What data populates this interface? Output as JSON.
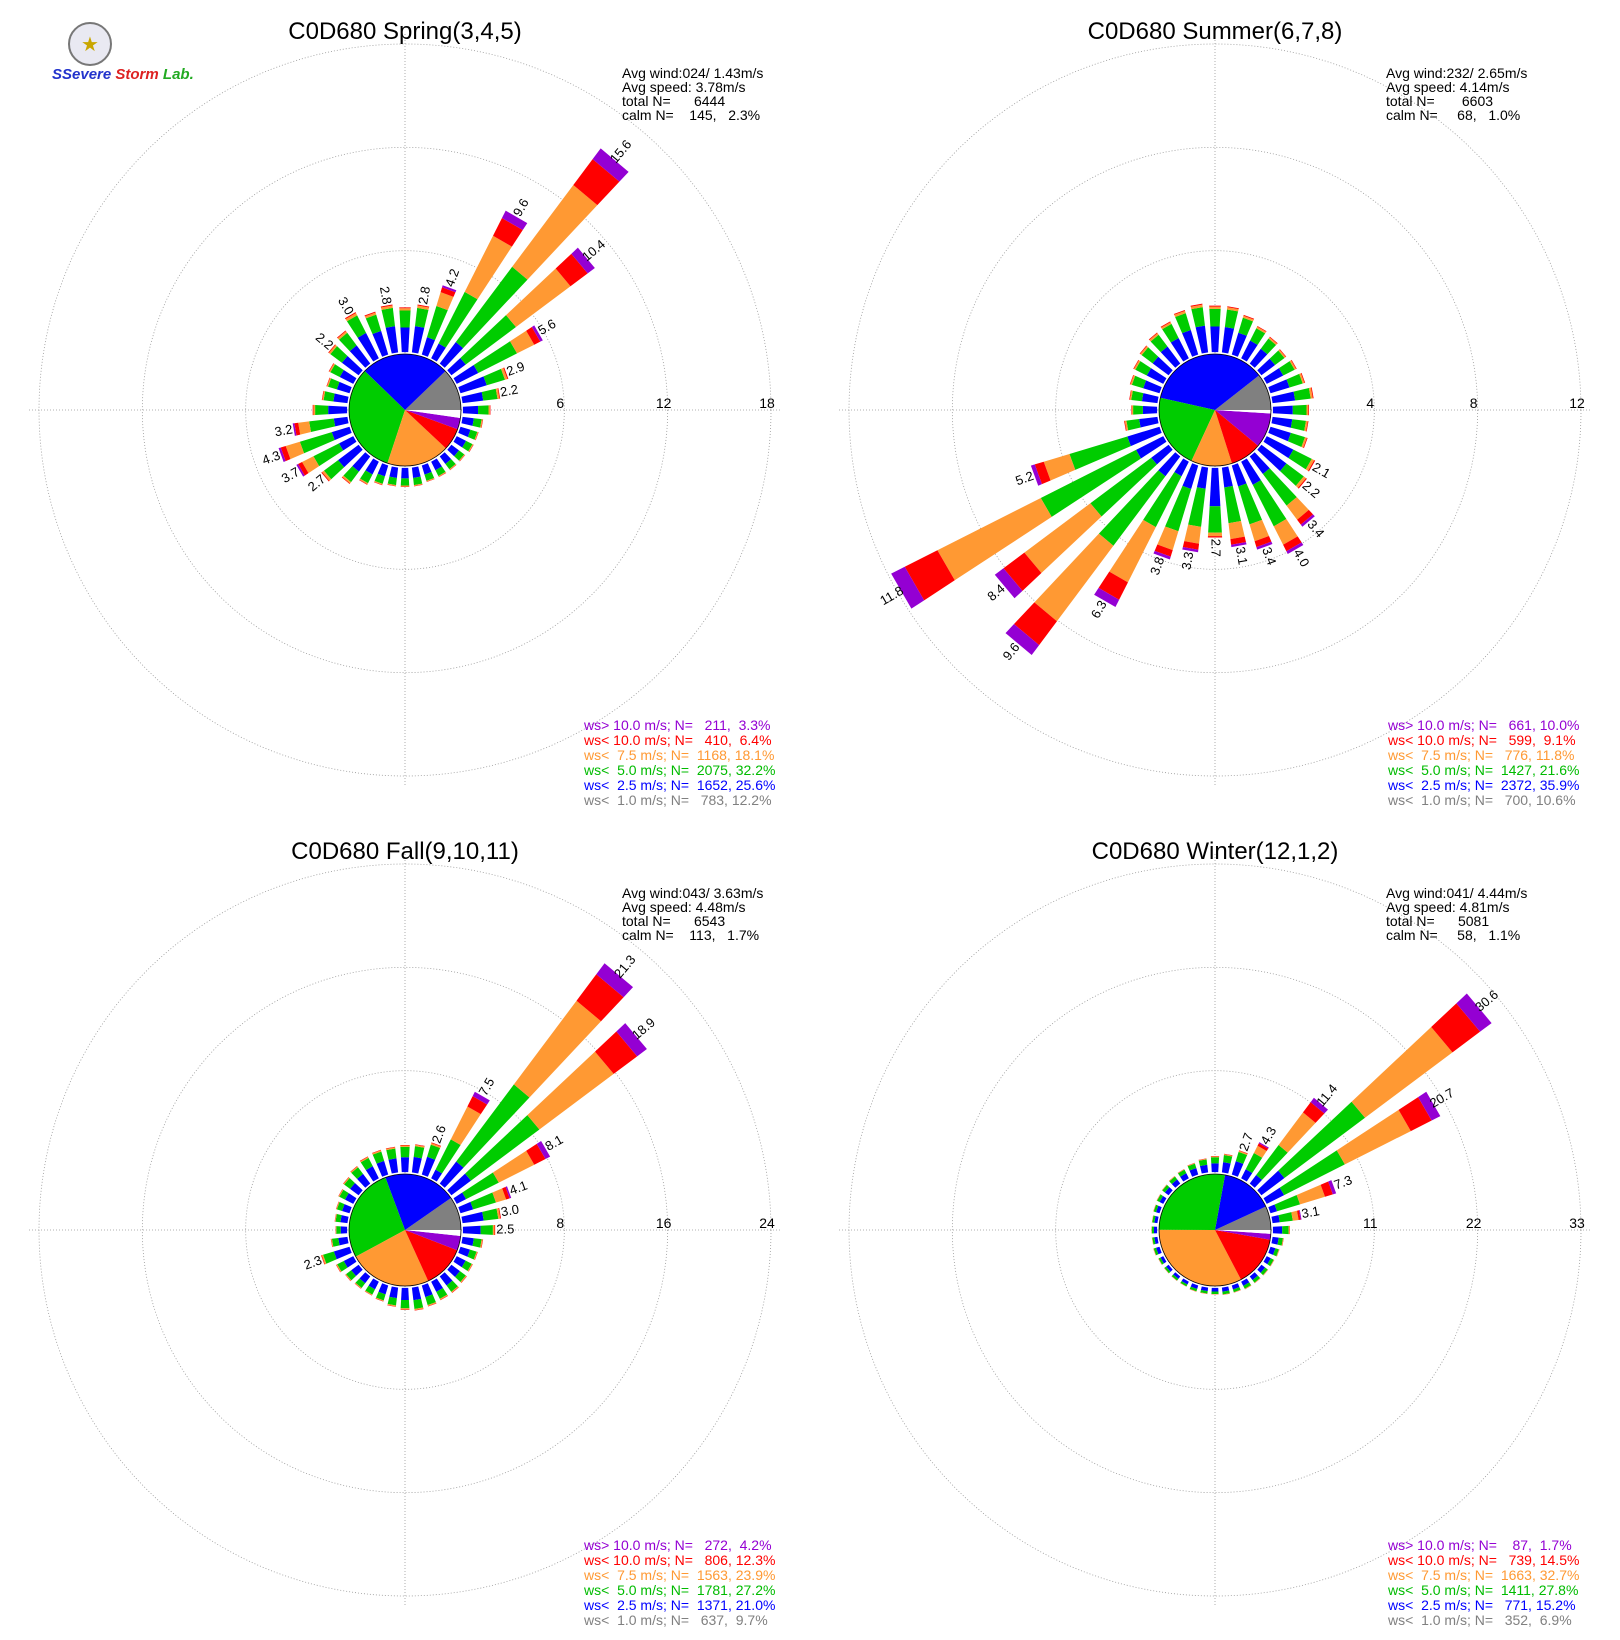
{
  "logo": {
    "word_a": "SSevere",
    "word_b": "Storm",
    "word_c": "Lab."
  },
  "colors": {
    "gt10": "#9400d3",
    "lt10": "#ff0000",
    "lt7_5": "#ff9933",
    "lt5": "#00cc00",
    "lt2_5": "#0000ff",
    "lt1": "#808080",
    "calm": "#ffffff",
    "grid": "#999999"
  },
  "chart_data": [
    {
      "type": "wind-rose",
      "title": "C0D680 Spring(3,4,5)",
      "stats": {
        "avg_wind": "Avg wind:024/ 1.43m/s",
        "avg_speed": "Avg speed: 3.78m/s",
        "total_n": "total N=      6444",
        "calm_n": "calm N=    145,   2.3%"
      },
      "rings": [
        6,
        12,
        18
      ],
      "rings_labels": [
        "6",
        "12",
        "18"
      ],
      "pie": [
        12.2,
        25.6,
        32.2,
        18.1,
        6.4,
        3.3,
        2.3
      ],
      "spokes": [
        {
          "dir": 10,
          "total": 2.8,
          "label": "2.8"
        },
        {
          "dir": 20,
          "total": 4.2,
          "label": "4.2"
        },
        {
          "dir": 30,
          "total": 9.6,
          "label": "9.6"
        },
        {
          "dir": 40,
          "total": 15.6,
          "label": "15.6"
        },
        {
          "dir": 50,
          "total": 10.4,
          "label": "10.4"
        },
        {
          "dir": 60,
          "total": 5.6,
          "label": "5.6"
        },
        {
          "dir": 70,
          "total": 2.9,
          "label": "2.9"
        },
        {
          "dir": 80,
          "total": 2.2,
          "label": "2.2"
        },
        {
          "dir": 90,
          "total": 1.6
        },
        {
          "dir": 100,
          "total": 1.2
        },
        {
          "dir": 110,
          "total": 1.1
        },
        {
          "dir": 120,
          "total": 1.1
        },
        {
          "dir": 130,
          "total": 1.0
        },
        {
          "dir": 140,
          "total": 1.0
        },
        {
          "dir": 150,
          "total": 1.0
        },
        {
          "dir": 160,
          "total": 1.0
        },
        {
          "dir": 170,
          "total": 1.1
        },
        {
          "dir": 180,
          "total": 1.1
        },
        {
          "dir": 190,
          "total": 1.1
        },
        {
          "dir": 200,
          "total": 1.2
        },
        {
          "dir": 210,
          "total": 1.5
        },
        {
          "dir": 220,
          "total": 2.0
        },
        {
          "dir": 230,
          "total": 2.7,
          "label": "2.7"
        },
        {
          "dir": 240,
          "total": 3.7,
          "label": "3.7"
        },
        {
          "dir": 250,
          "total": 4.3,
          "label": "4.3"
        },
        {
          "dir": 260,
          "total": 3.2,
          "label": "3.2"
        },
        {
          "dir": 270,
          "total": 2.0
        },
        {
          "dir": 280,
          "total": 1.5
        },
        {
          "dir": 290,
          "total": 1.4
        },
        {
          "dir": 300,
          "total": 1.6
        },
        {
          "dir": 310,
          "total": 2.2,
          "label": "2.2"
        },
        {
          "dir": 320,
          "total": 2.4
        },
        {
          "dir": 330,
          "total": 3.0,
          "label": "3.0"
        },
        {
          "dir": 340,
          "total": 2.6
        },
        {
          "dir": 350,
          "total": 2.8,
          "label": "2.8"
        },
        {
          "dir": 360,
          "total": 2.6
        }
      ],
      "legend": [
        "ws> 10.0 m/s; N=   211,  3.3%",
        "ws< 10.0 m/s; N=   410,  6.4%",
        "ws<  7.5 m/s; N=  1168, 18.1%",
        "ws<  5.0 m/s; N=  2075, 32.2%",
        "ws<  2.5 m/s; N=  1652, 25.6%",
        "ws<  1.0 m/s; N=   783, 12.2%"
      ]
    },
    {
      "type": "wind-rose",
      "title": "C0D680 Summer(6,7,8)",
      "stats": {
        "avg_wind": "Avg wind:232/ 2.65m/s",
        "avg_speed": "Avg speed: 4.14m/s",
        "total_n": "total N=       6603",
        "calm_n": "calm N=     68,   1.0%"
      },
      "rings": [
        4,
        8,
        12
      ],
      "rings_labels": [
        "4",
        "8",
        "12"
      ],
      "pie": [
        10.6,
        35.9,
        21.6,
        11.8,
        9.1,
        10.0,
        1.0
      ],
      "spokes": [
        {
          "dir": 10,
          "total": 1.8
        },
        {
          "dir": 20,
          "total": 1.6
        },
        {
          "dir": 30,
          "total": 1.4
        },
        {
          "dir": 40,
          "total": 1.3
        },
        {
          "dir": 50,
          "total": 1.2
        },
        {
          "dir": 60,
          "total": 1.3
        },
        {
          "dir": 70,
          "total": 1.4
        },
        {
          "dir": 80,
          "total": 1.6
        },
        {
          "dir": 90,
          "total": 1.4
        },
        {
          "dir": 100,
          "total": 1.4
        },
        {
          "dir": 110,
          "total": 1.5
        },
        {
          "dir": 120,
          "total": 2.1,
          "label": "2.1"
        },
        {
          "dir": 130,
          "total": 2.2,
          "label": "2.2"
        },
        {
          "dir": 140,
          "total": 3.4,
          "label": "3.4"
        },
        {
          "dir": 150,
          "total": 4.0,
          "label": "4.0"
        },
        {
          "dir": 160,
          "total": 3.4,
          "label": "3.4"
        },
        {
          "dir": 170,
          "total": 3.1,
          "label": "3.1"
        },
        {
          "dir": 180,
          "total": 2.7,
          "label": "2.7"
        },
        {
          "dir": 190,
          "total": 3.3,
          "label": "3.3"
        },
        {
          "dir": 200,
          "total": 3.8,
          "label": "3.8"
        },
        {
          "dir": 210,
          "total": 6.3,
          "label": "6.3"
        },
        {
          "dir": 220,
          "total": 9.6,
          "label": "9.6"
        },
        {
          "dir": 230,
          "total": 8.4,
          "label": "8.4"
        },
        {
          "dir": 240,
          "total": 11.8,
          "label": "11.8"
        },
        {
          "dir": 250,
          "total": 5.2,
          "label": "5.2"
        },
        {
          "dir": 260,
          "total": 1.3
        },
        {
          "dir": 270,
          "total": 1.0
        },
        {
          "dir": 280,
          "total": 1.1
        },
        {
          "dir": 290,
          "total": 1.2
        },
        {
          "dir": 300,
          "total": 1.3
        },
        {
          "dir": 310,
          "total": 1.4
        },
        {
          "dir": 320,
          "total": 1.5
        },
        {
          "dir": 330,
          "total": 1.6
        },
        {
          "dir": 340,
          "total": 1.8
        },
        {
          "dir": 350,
          "total": 1.9
        },
        {
          "dir": 360,
          "total": 1.8
        }
      ],
      "legend": [
        "ws> 10.0 m/s; N=   661, 10.0%",
        "ws< 10.0 m/s; N=   599,  9.1%",
        "ws<  7.5 m/s; N=   776, 11.8%",
        "ws<  5.0 m/s; N=  1427, 21.6%",
        "ws<  2.5 m/s; N=  2372, 35.9%",
        "ws<  1.0 m/s; N=   700, 10.6%"
      ]
    },
    {
      "type": "wind-rose",
      "title": "C0D680 Fall(9,10,11)",
      "stats": {
        "avg_wind": "Avg wind:043/ 3.63m/s",
        "avg_speed": "Avg speed: 4.48m/s",
        "total_n": "total N=      6543",
        "calm_n": "calm N=    113,   1.7%"
      },
      "rings": [
        8,
        16,
        24
      ],
      "rings_labels": [
        "8",
        "16",
        "24"
      ],
      "pie": [
        9.7,
        21.0,
        27.2,
        23.9,
        12.3,
        4.2,
        1.7
      ],
      "spokes": [
        {
          "dir": 10,
          "total": 2.2
        },
        {
          "dir": 20,
          "total": 2.6,
          "label": "2.6"
        },
        {
          "dir": 30,
          "total": 7.5,
          "label": "7.5"
        },
        {
          "dir": 40,
          "total": 21.3,
          "label": "21.3"
        },
        {
          "dir": 50,
          "total": 18.9,
          "label": "18.9"
        },
        {
          "dir": 60,
          "total": 8.1,
          "label": "8.1"
        },
        {
          "dir": 70,
          "total": 4.1,
          "label": "4.1"
        },
        {
          "dir": 80,
          "total": 3.0,
          "label": "3.0"
        },
        {
          "dir": 90,
          "total": 2.5,
          "label": "2.5"
        },
        {
          "dir": 100,
          "total": 1.6
        },
        {
          "dir": 110,
          "total": 1.4
        },
        {
          "dir": 120,
          "total": 1.4
        },
        {
          "dir": 130,
          "total": 1.5
        },
        {
          "dir": 140,
          "total": 1.6
        },
        {
          "dir": 150,
          "total": 1.6
        },
        {
          "dir": 160,
          "total": 1.7
        },
        {
          "dir": 170,
          "total": 1.8
        },
        {
          "dir": 180,
          "total": 1.7
        },
        {
          "dir": 190,
          "total": 1.5
        },
        {
          "dir": 200,
          "total": 1.3
        },
        {
          "dir": 210,
          "total": 1.2
        },
        {
          "dir": 220,
          "total": 1.2
        },
        {
          "dir": 230,
          "total": 1.3
        },
        {
          "dir": 240,
          "total": 1.5
        },
        {
          "dir": 250,
          "total": 2.3,
          "label": "2.3"
        },
        {
          "dir": 260,
          "total": 1.3
        },
        {
          "dir": 270,
          "total": 0.9
        },
        {
          "dir": 280,
          "total": 1.0
        },
        {
          "dir": 290,
          "total": 1.1
        },
        {
          "dir": 300,
          "total": 1.3
        },
        {
          "dir": 310,
          "total": 1.5
        },
        {
          "dir": 320,
          "total": 1.7
        },
        {
          "dir": 330,
          "total": 1.9
        },
        {
          "dir": 340,
          "total": 2.0
        },
        {
          "dir": 350,
          "total": 2.0
        },
        {
          "dir": 360,
          "total": 2.1
        }
      ],
      "legend": [
        "ws> 10.0 m/s; N=   272,  4.2%",
        "ws< 10.0 m/s; N=   806, 12.3%",
        "ws<  7.5 m/s; N=  1563, 23.9%",
        "ws<  5.0 m/s; N=  1781, 27.2%",
        "ws<  2.5 m/s; N=  1371, 21.0%",
        "ws<  1.0 m/s; N=   637,  9.7%"
      ]
    },
    {
      "type": "wind-rose",
      "title": "C0D680 Winter(12,1,2)",
      "stats": {
        "avg_wind": "Avg wind:041/ 4.44m/s",
        "avg_speed": "Avg speed: 4.81m/s",
        "total_n": "total N=      5081",
        "calm_n": "calm N=     58,   1.1%"
      },
      "rings": [
        11,
        22,
        33
      ],
      "rings_labels": [
        "11",
        "22",
        "33"
      ],
      "pie": [
        6.9,
        15.2,
        27.8,
        32.7,
        14.5,
        1.7,
        1.1
      ],
      "spokes": [
        {
          "dir": 10,
          "total": 2.0
        },
        {
          "dir": 20,
          "total": 2.7,
          "label": "2.7"
        },
        {
          "dir": 30,
          "total": 4.3,
          "label": "4.3"
        },
        {
          "dir": 40,
          "total": 11.4,
          "label": "11.4"
        },
        {
          "dir": 50,
          "total": 30.6,
          "label": "30.6"
        },
        {
          "dir": 60,
          "total": 20.7,
          "label": "20.7"
        },
        {
          "dir": 70,
          "total": 7.3,
          "label": "7.3"
        },
        {
          "dir": 80,
          "total": 3.1,
          "label": "3.1"
        },
        {
          "dir": 90,
          "total": 1.8
        },
        {
          "dir": 100,
          "total": 1.2
        },
        {
          "dir": 110,
          "total": 1.0
        },
        {
          "dir": 120,
          "total": 0.9
        },
        {
          "dir": 130,
          "total": 0.9
        },
        {
          "dir": 140,
          "total": 0.9
        },
        {
          "dir": 150,
          "total": 0.9
        },
        {
          "dir": 160,
          "total": 0.8
        },
        {
          "dir": 170,
          "total": 0.8
        },
        {
          "dir": 180,
          "total": 0.7
        },
        {
          "dir": 190,
          "total": 0.7
        },
        {
          "dir": 200,
          "total": 0.7
        },
        {
          "dir": 210,
          "total": 0.6
        },
        {
          "dir": 220,
          "total": 0.6
        },
        {
          "dir": 230,
          "total": 0.6
        },
        {
          "dir": 240,
          "total": 0.6
        },
        {
          "dir": 250,
          "total": 0.7
        },
        {
          "dir": 260,
          "total": 0.6
        },
        {
          "dir": 270,
          "total": 0.6
        },
        {
          "dir": 280,
          "total": 0.6
        },
        {
          "dir": 290,
          "total": 0.7
        },
        {
          "dir": 300,
          "total": 0.8
        },
        {
          "dir": 310,
          "total": 0.9
        },
        {
          "dir": 320,
          "total": 1.0
        },
        {
          "dir": 330,
          "total": 1.1
        },
        {
          "dir": 340,
          "total": 1.3
        },
        {
          "dir": 350,
          "total": 1.5
        },
        {
          "dir": 360,
          "total": 1.7
        }
      ],
      "legend": [
        "ws> 10.0 m/s; N=    87,  1.7%",
        "ws< 10.0 m/s; N=   739, 14.5%",
        "ws<  7.5 m/s; N=  1663, 32.7%",
        "ws<  5.0 m/s; N=  1411, 27.8%",
        "ws<  2.5 m/s; N=   771, 15.2%",
        "ws<  1.0 m/s; N=   352,  6.9%"
      ]
    }
  ]
}
